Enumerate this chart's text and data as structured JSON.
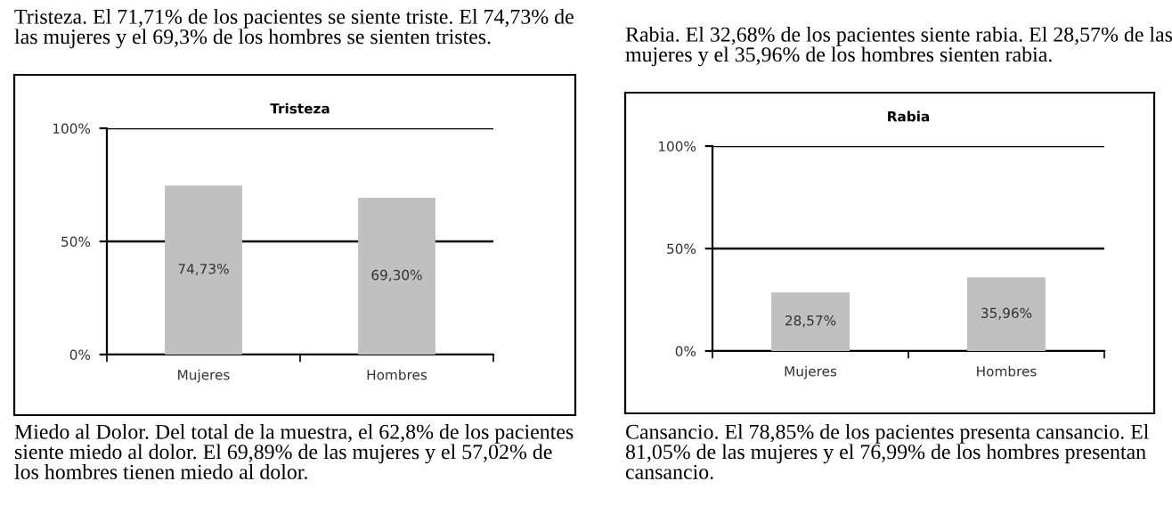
{
  "chart_data": [
    {
      "type": "bar",
      "title": "Tristeza",
      "subtitle": "Tristeza. El 71,71% de los pacientes se siente triste. El 74,73% de las mujeres y el 69,3% de los hombres se sienten tristes.",
      "categories": [
        "Mujeres",
        "Hombres"
      ],
      "values": [
        74.73,
        69.3
      ],
      "value_labels": [
        "74,73%",
        "69,30%"
      ],
      "color": "#c0c0c0",
      "ylim": [
        0,
        100
      ],
      "yticks": [
        {
          "value": 0,
          "label": "0%"
        },
        {
          "value": 50,
          "label": "50%"
        },
        {
          "value": 100,
          "label": "100%"
        }
      ],
      "grid": "y",
      "annotations": [
        "Miedo al Dolor. Del total de la muestra, el 62,8% de los pacientes siente miedo al dolor. El 69,89% de las mujeres y el 57,02% de los hombres tienen miedo al dolor."
      ]
    },
    {
      "type": "bar",
      "title": "Rabia",
      "subtitle": "Rabia. El 32,68% de los pacientes siente rabia. El 28,57% de las mujeres y el 35,96% de los hombres sienten rabia.",
      "categories": [
        "Mujeres",
        "Hombres"
      ],
      "values": [
        28.57,
        35.96
      ],
      "value_labels": [
        "28,57%",
        "35,96%"
      ],
      "color": "#c0c0c0",
      "ylim": [
        0,
        100
      ],
      "yticks": [
        {
          "value": 0,
          "label": "0%"
        },
        {
          "value": 50,
          "label": "50%"
        },
        {
          "value": 100,
          "label": "100%"
        }
      ],
      "grid": "y",
      "annotations": [
        "Cansancio. El 78,85% de los pacientes presenta cansancio. El 81,05% de las mujeres y el 76,99% de los hombres presentan cansancio."
      ]
    }
  ]
}
